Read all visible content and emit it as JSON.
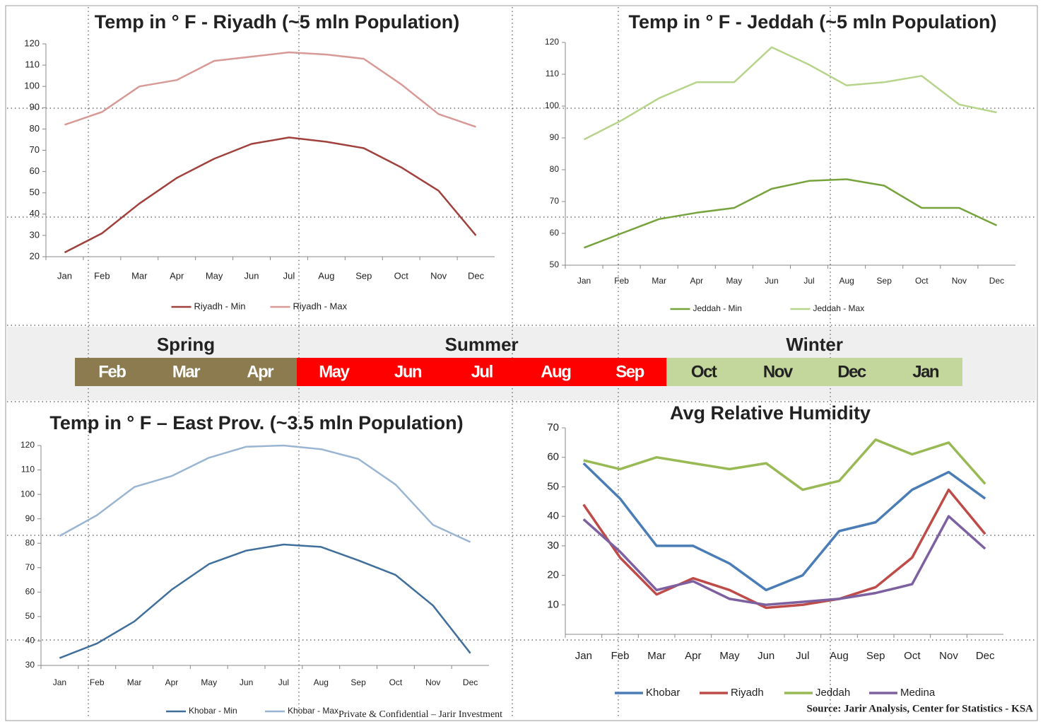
{
  "chart_data": [
    {
      "type": "line",
      "title": "Temp in ° F - Riyadh (~5 mln Population)",
      "categories": [
        "Jan",
        "Feb",
        "Mar",
        "Apr",
        "May",
        "Jun",
        "Jul",
        "Aug",
        "Sep",
        "Oct",
        "Nov",
        "Dec"
      ],
      "series": [
        {
          "name": "Riyadh - Min",
          "color": "#a0413d",
          "values": [
            22,
            31,
            45,
            57,
            66,
            73,
            76,
            74,
            71,
            62,
            51,
            30
          ]
        },
        {
          "name": "Riyadh - Max",
          "color": "#d89a96",
          "values": [
            82,
            88,
            100,
            103,
            112,
            114,
            116,
            115,
            113,
            101,
            87,
            81
          ]
        }
      ],
      "ylim": [
        20,
        120
      ],
      "yticks": [
        20,
        30,
        40,
        50,
        60,
        70,
        80,
        90,
        100,
        110,
        120
      ]
    },
    {
      "type": "line",
      "title": "Temp in ° F - Jeddah (~5 mln Population)",
      "categories": [
        "Jan",
        "Feb",
        "Mar",
        "Apr",
        "May",
        "Jun",
        "Jul",
        "Aug",
        "Sep",
        "Oct",
        "Nov",
        "Dec"
      ],
      "series": [
        {
          "name": "Jeddah - Min",
          "color": "#77a33c",
          "values": [
            55.5,
            60,
            64.5,
            66.5,
            68,
            74,
            76.5,
            77,
            75,
            68,
            68,
            62.5
          ]
        },
        {
          "name": "Jeddah - Max",
          "color": "#b7d48b",
          "values": [
            89.5,
            95.5,
            102.5,
            107.5,
            107.5,
            118.5,
            113,
            106.5,
            107.5,
            109.5,
            100.5,
            98
          ]
        }
      ],
      "ylim": [
        50,
        120
      ],
      "yticks": [
        50,
        60,
        70,
        80,
        90,
        100,
        110,
        120
      ]
    },
    {
      "type": "line",
      "title": "Temp in ° F – East Prov. (~3.5 mln Population)",
      "categories": [
        "Jan",
        "Feb",
        "Mar",
        "Apr",
        "May",
        "Jun",
        "Jul",
        "Aug",
        "Sep",
        "Oct",
        "Nov",
        "Dec"
      ],
      "series": [
        {
          "name": "Khobar - Min",
          "color": "#3f6f9a",
          "values": [
            33,
            39,
            48,
            61,
            71.5,
            77,
            79.5,
            78.5,
            73,
            67,
            54.5,
            35
          ]
        },
        {
          "name": "Khobar - Max",
          "color": "#9ab5d2",
          "values": [
            83,
            91.5,
            103,
            107.5,
            115,
            119.5,
            120,
            118.5,
            114.5,
            104,
            87.5,
            80.5
          ]
        }
      ],
      "ylim": [
        30,
        120
      ],
      "yticks": [
        30,
        40,
        50,
        60,
        70,
        80,
        90,
        100,
        110,
        120
      ]
    },
    {
      "type": "line",
      "title": "Avg Relative Humidity",
      "categories": [
        "Jan",
        "Feb",
        "Mar",
        "Apr",
        "May",
        "Jun",
        "Jul",
        "Aug",
        "Sep",
        "Oct",
        "Nov",
        "Dec"
      ],
      "series": [
        {
          "name": "Khobar",
          "color": "#4a7db5",
          "values": [
            58,
            46,
            30,
            30,
            24,
            15,
            20,
            35,
            38,
            49,
            55,
            46
          ]
        },
        {
          "name": "Riyadh",
          "color": "#be4b48",
          "values": [
            44,
            26,
            13.5,
            19,
            15,
            9,
            10,
            12,
            16,
            26,
            49,
            34
          ]
        },
        {
          "name": "Jeddah",
          "color": "#98b954",
          "values": [
            59,
            56,
            60,
            58,
            56,
            58,
            49,
            52,
            66,
            61,
            65,
            51
          ]
        },
        {
          "name": "Medina",
          "color": "#7d60a0",
          "values": [
            39,
            28,
            15,
            18,
            12,
            10,
            11,
            12,
            14,
            17,
            40,
            29
          ]
        }
      ],
      "ylim": [
        0,
        70
      ],
      "yticks": [
        10,
        20,
        30,
        40,
        50,
        60,
        70
      ]
    }
  ],
  "seasons": [
    {
      "name": "Spring",
      "color": "#8c7b4e",
      "text_color": "#ffffff",
      "months": [
        "Feb",
        "Mar",
        "Apr"
      ]
    },
    {
      "name": "Summer",
      "color": "#ff0000",
      "text_color": "#ffffff",
      "months": [
        "May",
        "Jun",
        "Jul",
        "Aug",
        "Sep"
      ]
    },
    {
      "name": "Winter",
      "color": "#c3d69b",
      "text_color": "#222222",
      "months": [
        "Oct",
        "Nov",
        "Dec",
        "Jan"
      ]
    }
  ],
  "footer": {
    "confidential": "Private & Confidential – Jarir Investment",
    "source": "Source: Jarir Analysis, Center for Statistics - KSA"
  }
}
